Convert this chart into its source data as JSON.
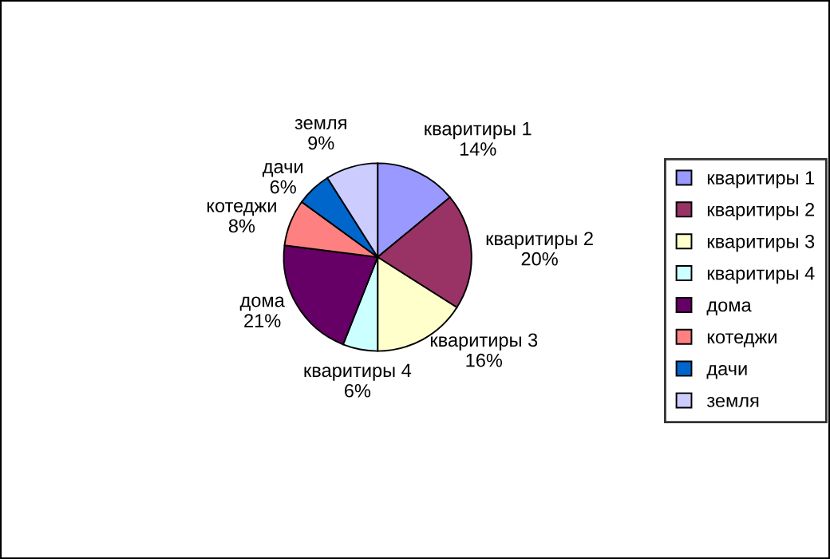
{
  "chart_data": {
    "type": "pie",
    "categories": [
      "кваритиры 1",
      "кваритиры 2",
      "кваритиры 3",
      "кваритиры 4",
      "дома",
      "котеджи",
      "дачи",
      "земля"
    ],
    "values": [
      14,
      20,
      16,
      6,
      21,
      8,
      6,
      9
    ],
    "value_labels": [
      "14%",
      "20%",
      "16%",
      "6%",
      "21%",
      "8%",
      "6%",
      "9%"
    ],
    "colors": [
      "#9999ff",
      "#993366",
      "#ffffcc",
      "#ccffff",
      "#660066",
      "#ff8080",
      "#0066cc",
      "#ccccff"
    ],
    "legend": "right"
  }
}
